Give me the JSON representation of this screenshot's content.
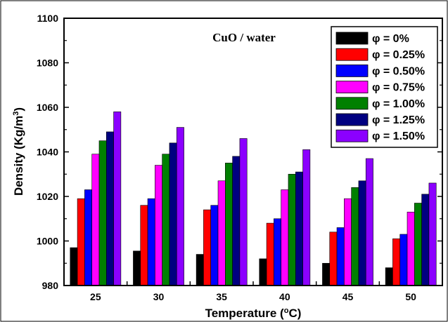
{
  "chart_data": {
    "type": "bar",
    "annotation": "CuO / water",
    "xlabel": {
      "main": "Temperature (",
      "sup": "o",
      "tail": "C)"
    },
    "ylabel": {
      "main": "Density (Kg/m",
      "sup": "3",
      "tail": ")"
    },
    "ylim": [
      980,
      1100
    ],
    "yticks": [
      "980",
      "1000",
      "1020",
      "1040",
      "1060",
      "1080",
      "1100"
    ],
    "categories": [
      "25",
      "30",
      "35",
      "40",
      "45",
      "50"
    ],
    "legend_position": "top-right",
    "series": [
      {
        "name": "φ = 0%",
        "color": "#000000",
        "values": [
          997,
          995.5,
          994,
          992,
          990,
          988
        ]
      },
      {
        "name": "φ = 0.25%",
        "color": "#ff0000",
        "values": [
          1019,
          1016,
          1014,
          1008,
          1004,
          1001
        ]
      },
      {
        "name": "φ = 0.50%",
        "color": "#0000ff",
        "values": [
          1023,
          1019,
          1016,
          1010,
          1006,
          1003
        ]
      },
      {
        "name": "φ = 0.75%",
        "color": "#ff00ff",
        "values": [
          1039,
          1034,
          1027,
          1023,
          1019,
          1013
        ]
      },
      {
        "name": "φ = 1.00%",
        "color": "#008000",
        "values": [
          1045,
          1039,
          1035,
          1030,
          1024,
          1017
        ]
      },
      {
        "name": "φ = 1.25%",
        "color": "#000080",
        "values": [
          1049,
          1044,
          1038,
          1031,
          1027,
          1021
        ]
      },
      {
        "name": "φ = 1.50%",
        "color": "#8b00ff",
        "values": [
          1058,
          1051,
          1046,
          1041,
          1037,
          1026
        ]
      }
    ]
  }
}
